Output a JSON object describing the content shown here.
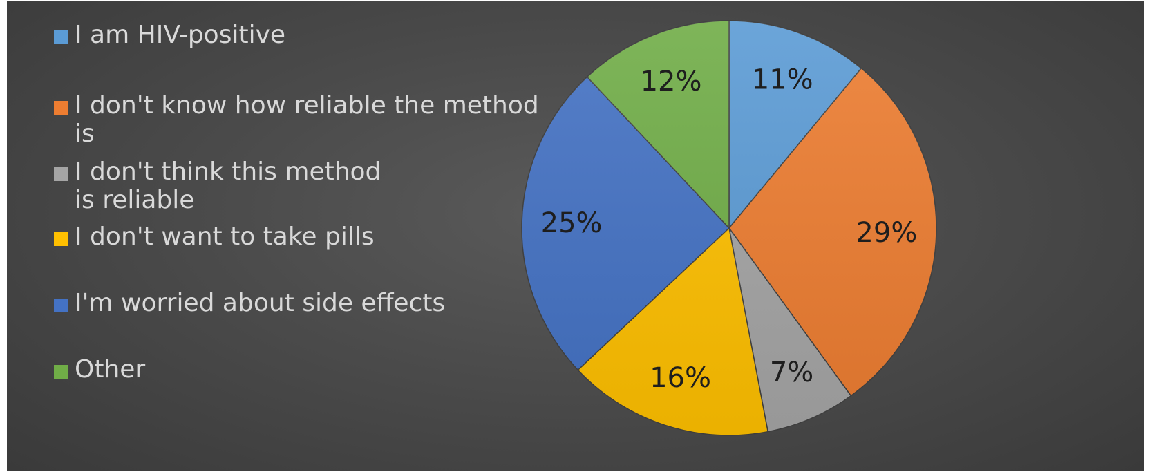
{
  "chart_data": {
    "type": "pie",
    "title": "",
    "legend_placement": "left",
    "start_angle_deg": 0,
    "direction": "clockwise",
    "slices": [
      {
        "label": "I am HIV-positive",
        "value": 11,
        "value_label": "11%",
        "color": "#5b9bd5"
      },
      {
        "label": "I don't know how reliable the method is",
        "value": 29,
        "value_label": "29%",
        "color": "#ed7d31"
      },
      {
        "label": "I don't think this method\nis reliable",
        "value": 7,
        "value_label": "7%",
        "color": "#a5a5a5"
      },
      {
        "label": "I don't want to take pills",
        "value": 16,
        "value_label": "16%",
        "color": "#ffc000"
      },
      {
        "label": "I'm worried about side effects",
        "value": 25,
        "value_label": "25%",
        "color": "#4472c4"
      },
      {
        "label": "Other",
        "value": 12,
        "value_label": "12%",
        "color": "#70ad47"
      }
    ]
  }
}
